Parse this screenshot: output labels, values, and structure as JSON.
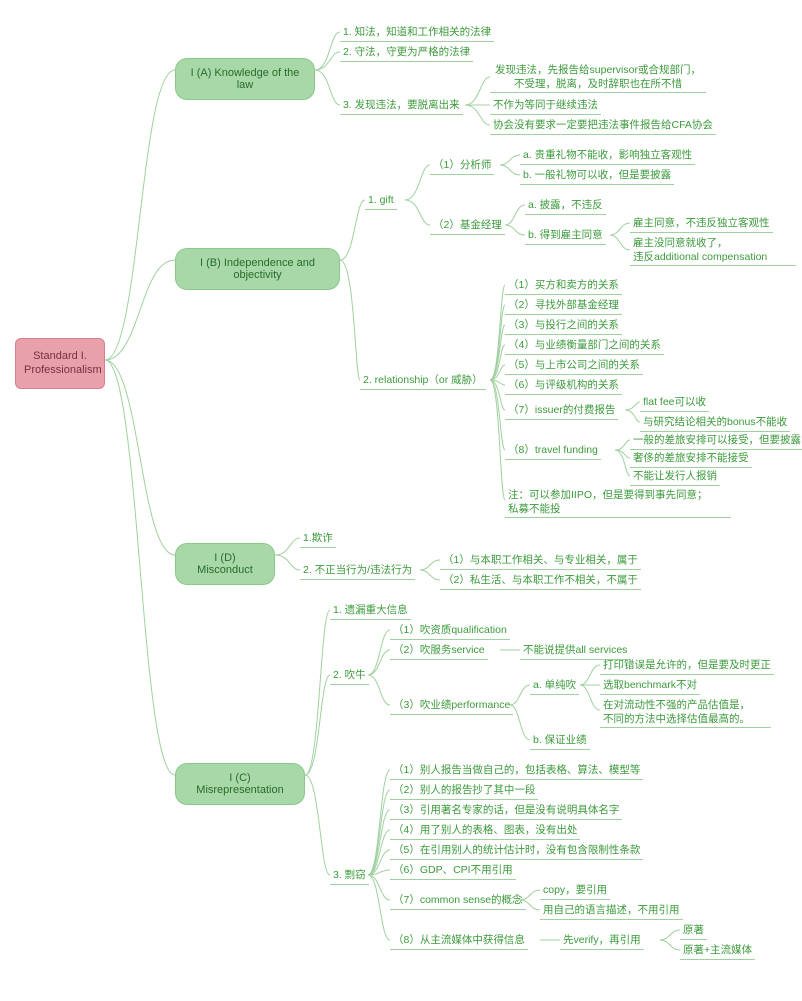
{
  "colors": {
    "root_bg": "#e8a0aa",
    "root_border": "#d48090",
    "root_text": "#7a3040",
    "branch_bg": "#a8d8a8",
    "branch_border": "#8bc88b",
    "branch_text": "#2a6b2a",
    "leaf_text": "#3c9a3c",
    "line": "#a0d0a0",
    "background": "#ffffff"
  },
  "root": "Standard I. Professionalism",
  "branchA": "I (A) Knowledge of the law",
  "a1": "1. 知法，知道和工作相关的法律",
  "a2": "2. 守法，守更为严格的法律",
  "a3": "3. 发现违法，要脱离出来",
  "a3_1": "发现违法，先报告给supervisor或合规部门，\n不受理，脱离，及时辞职也在所不惜",
  "a3_2": "不作为等同于继续违法",
  "a3_3": "协会没有要求一定要把违法事件报告给CFA协会",
  "branchB": "I (B) Independence and objectivity",
  "b1": "1. gift",
  "b1_1": "（1）分析师",
  "b1_1a": "a. 贵重礼物不能收，影响独立客观性",
  "b1_1b": "b. 一般礼物可以收，但是要披露",
  "b1_2": "（2）基金经理",
  "b1_2a": "a. 披露，不违反",
  "b1_2b": "b. 得到雇主同意",
  "b1_2b1": "雇主同意，不违反独立客观性",
  "b1_2b2": "雇主没同意就收了，\n违反additional compensation",
  "b2": "2. relationship（or 威胁）",
  "b2_1": "（1）买方和卖方的关系",
  "b2_2": "（2）寻找外部基金经理",
  "b2_3": "（3）与投行之间的关系",
  "b2_4": "（4）与业绩衡量部门之间的关系",
  "b2_5": "（5）与上市公司之间的关系",
  "b2_6": "（6）与评级机构的关系",
  "b2_7": "（7）issuer的付费报告",
  "b2_7a": "flat fee可以收",
  "b2_7b": "与研究结论相关的bonus不能收",
  "b2_8": "（8）travel funding",
  "b2_8a": "一般的差旅安排可以接受，但要披露",
  "b2_8b": "奢侈的差旅安排不能接受",
  "b2_8c": "不能让发行人报销",
  "b2_note": "注：可以参加IIPO，但是要得到事先同意；\n私募不能投",
  "branchD": "I (D) Misconduct",
  "d1": "1.欺诈",
  "d2": "2. 不正当行为/违法行为",
  "d2_1": "（1）与本职工作相关、与专业相关，属于",
  "d2_2": "（2）私生活、与本职工作不相关，不属于",
  "branchC": "I (C) Misrepresentation",
  "c1": "1. 遗漏重大信息",
  "c2": "2. 吹牛",
  "c2_1": "（1）吹资质qualification",
  "c2_2": "（2）吹服务service",
  "c2_2a": "不能说提供all services",
  "c2_3": "（3）吹业绩performance",
  "c2_3a": "a. 单纯吹",
  "c2_3a1": "打印错误是允许的，但是要及时更正",
  "c2_3a2": "选取benchmark不对",
  "c2_3a3": "在对流动性不强的产品估值是，\n不同的方法中选择估值最高的。",
  "c2_3b": "b. 保证业绩",
  "c3": "3. 剽窃",
  "c3_1": "（1）别人报告当做自己的，包括表格、算法、模型等",
  "c3_2": "（2）别人的报告抄了其中一段",
  "c3_3": "（3）引用著名专家的话，但是没有说明具体名字",
  "c3_4": "（4）用了别人的表格、图表，没有出处",
  "c3_5": "（5）在引用别人的统计估计时，没有包含限制性条款",
  "c3_6": "（6）GDP、CPI不用引用",
  "c3_7": "（7）common sense的概念",
  "c3_7a": "copy，要引用",
  "c3_7b": "用自己的语言描述，不用引用",
  "c3_8": "（8）从主流媒体中获得信息",
  "c3_8a": "先verify，再引用",
  "c3_8b": "原著",
  "c3_8c": "原著+主流媒体"
}
